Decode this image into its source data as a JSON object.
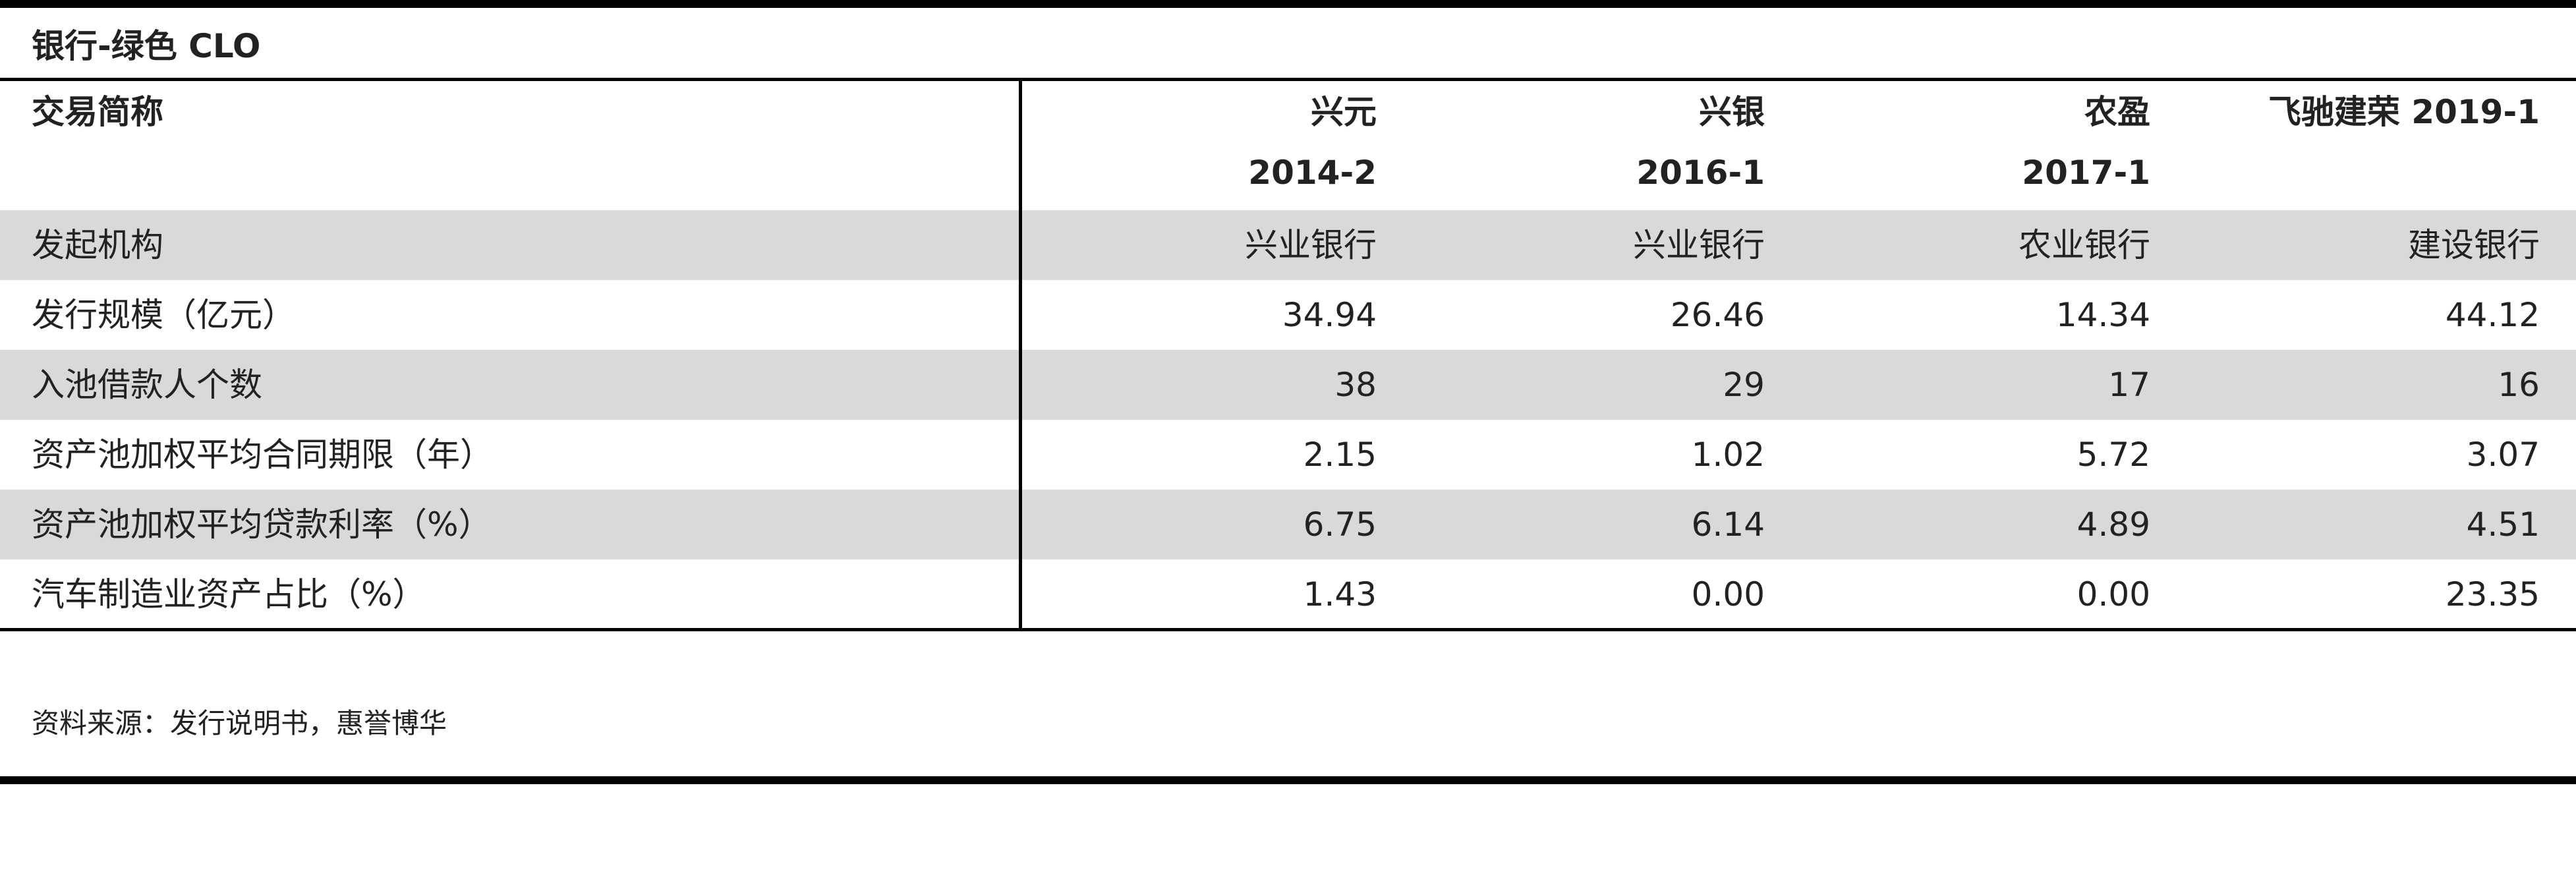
{
  "title": "银行-绿色 CLO",
  "table": {
    "header": [
      [
        "交易简称"
      ],
      [
        "兴元",
        "2014-2"
      ],
      [
        "兴银",
        "2016-1"
      ],
      [
        "农盈",
        "2017-1"
      ],
      [
        "飞驰建荣 2019-1"
      ]
    ],
    "rows": [
      [
        "发起机构",
        "兴业银行",
        "兴业银行",
        "农业银行",
        "建设银行"
      ],
      [
        "发行规模（亿元）",
        "34.94",
        "26.46",
        "14.34",
        "44.12"
      ],
      [
        "入池借款人个数",
        "38",
        "29",
        "17",
        "16"
      ],
      [
        "资产池加权平均合同期限（年）",
        "2.15",
        "1.02",
        "5.72",
        "3.07"
      ],
      [
        "资产池加权平均贷款利率（%）",
        "6.75",
        "6.14",
        "4.89",
        "4.51"
      ],
      [
        "汽车制造业资产占比（%）",
        "1.43",
        "0.00",
        "0.00",
        "23.35"
      ]
    ]
  },
  "source": "资料来源：发行说明书，惠誉博华"
}
